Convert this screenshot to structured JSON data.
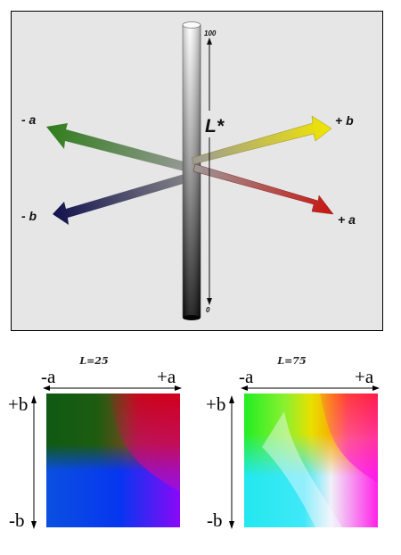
{
  "diagram": {
    "vertical_axis": {
      "label": "L*",
      "top": "100",
      "bottom": "0"
    },
    "arrows": {
      "minus_a": "- a",
      "plus_b": "+ b",
      "minus_b": "- b",
      "plus_a": "+ a"
    },
    "colors": {
      "green": "#2e7d1a",
      "yellow": "#f2e600",
      "blue": "#12124f",
      "red": "#c8140f",
      "background": "#e6e6e6"
    }
  },
  "planes": [
    {
      "title": "L=25",
      "minus_a": "-a",
      "plus_a": "+a",
      "plus_b": "+b",
      "minus_b": "-b"
    },
    {
      "title": "L=75",
      "minus_a": "-a",
      "plus_a": "+a",
      "plus_b": "+b",
      "minus_b": "-b"
    }
  ]
}
